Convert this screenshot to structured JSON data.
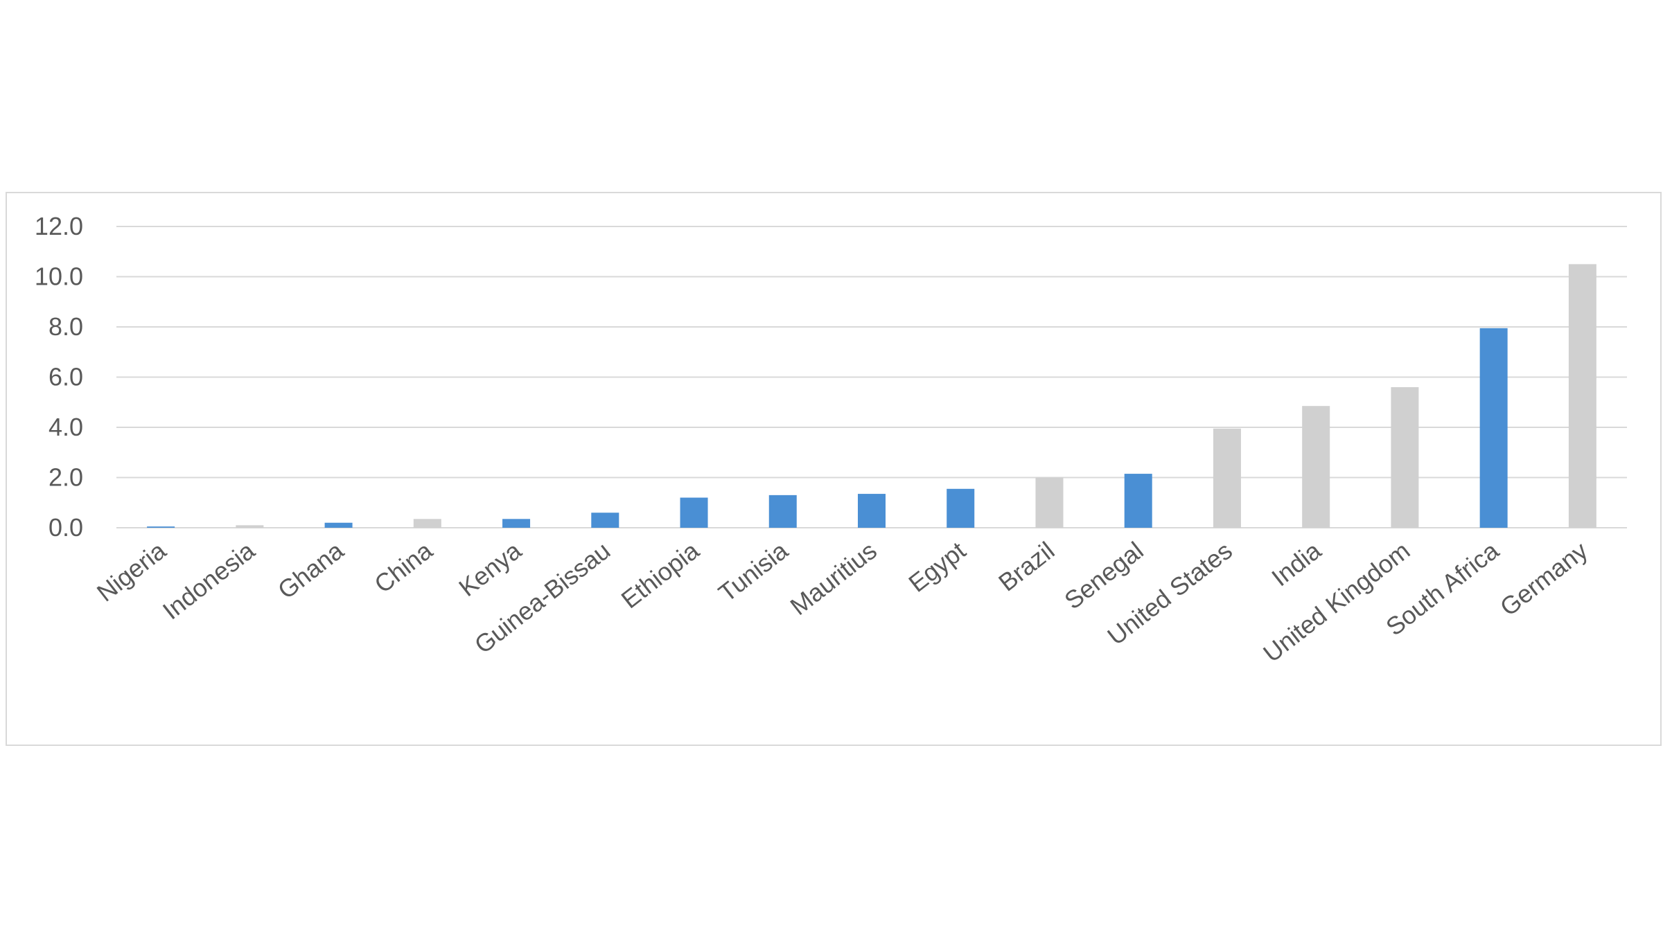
{
  "chart_data": {
    "type": "bar",
    "title": "",
    "xlabel": "",
    "ylabel": "",
    "ylim": [
      0,
      12
    ],
    "yticks": [
      "0.0",
      "2.0",
      "4.0",
      "6.0",
      "8.0",
      "10.0",
      "12.0"
    ],
    "grid": true,
    "legend": "none",
    "categories": [
      "Nigeria",
      "Indonesia",
      "Ghana",
      "China",
      "Kenya",
      "Guinea-Bissau",
      "Ethiopia",
      "Tunisia",
      "Mauritius",
      "Egypt",
      "Brazil",
      "Senegal",
      "United States",
      "India",
      "United Kingdom",
      "South Africa",
      "Germany"
    ],
    "values": [
      0.05,
      0.1,
      0.2,
      0.35,
      0.35,
      0.6,
      1.2,
      1.3,
      1.35,
      1.55,
      2.0,
      2.15,
      3.95,
      4.85,
      5.6,
      7.95,
      10.5
    ],
    "bar_groups": [
      "africa",
      "other",
      "africa",
      "other",
      "africa",
      "africa",
      "africa",
      "africa",
      "africa",
      "africa",
      "other",
      "africa",
      "other",
      "other",
      "other",
      "africa",
      "other"
    ],
    "colors": {
      "africa": "#4a8fd4",
      "other": "#d0d0d0"
    }
  }
}
